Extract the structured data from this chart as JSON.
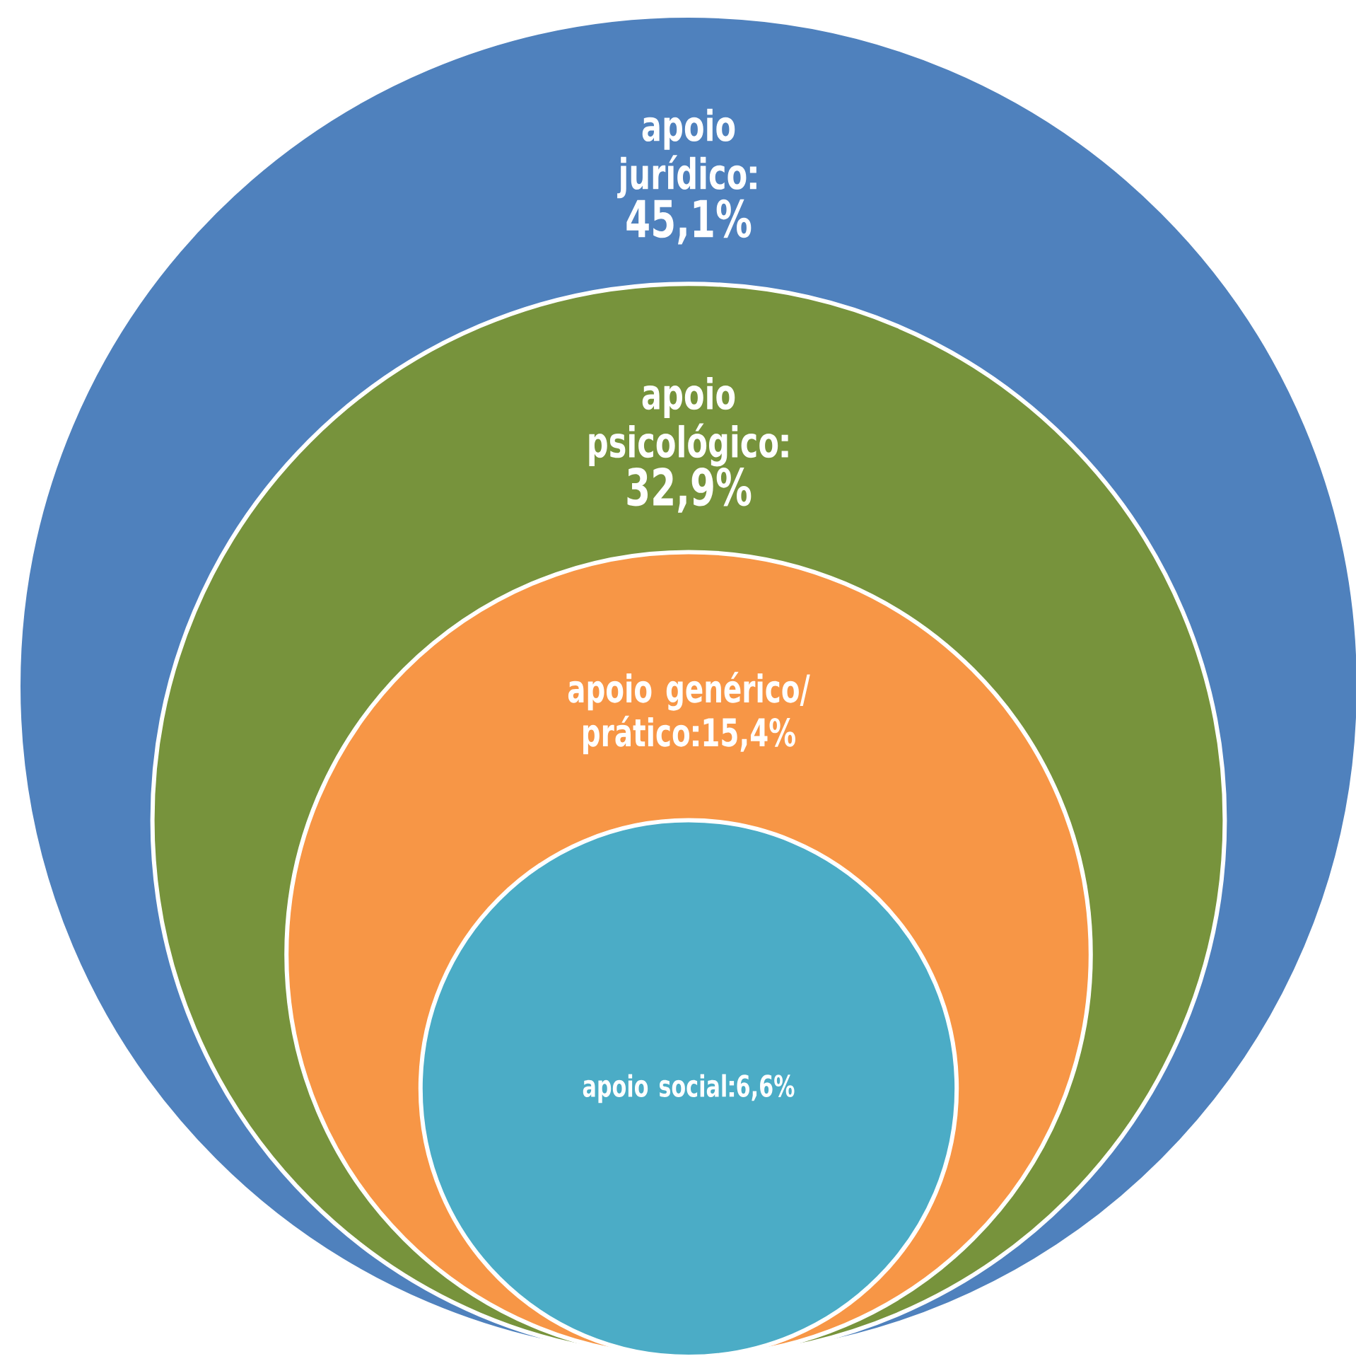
{
  "chart_data": {
    "type": "other",
    "categories": [
      "apoio jurídico",
      "apoio psicológico",
      "apoio genérico/ prático",
      "apoio social"
    ],
    "values": [
      45.1,
      32.9,
      15.4,
      6.6
    ],
    "value_labels": [
      "45,1%",
      "32,9%",
      "15,4%",
      "6,6%"
    ],
    "colors": [
      "#4f81bd",
      "#77933c",
      "#f79646",
      "#4bacc6"
    ]
  }
}
